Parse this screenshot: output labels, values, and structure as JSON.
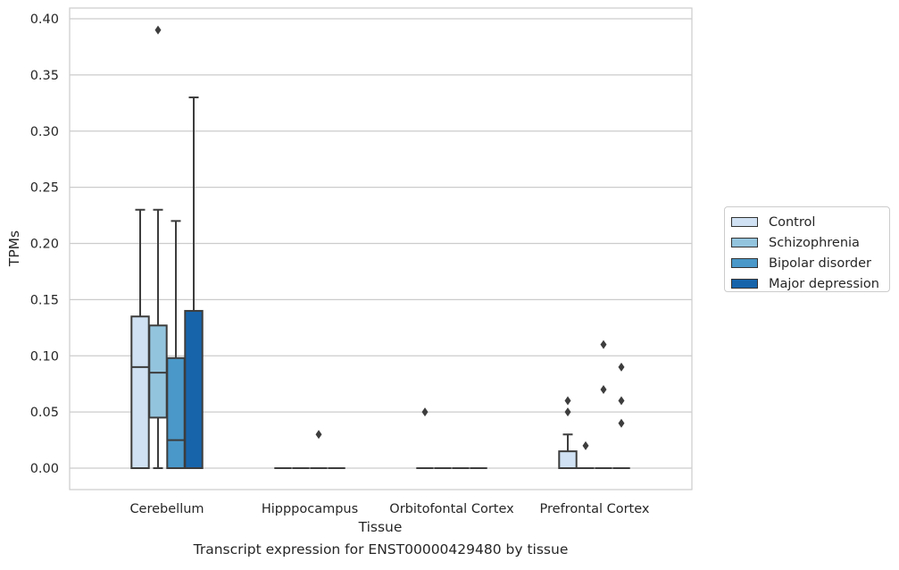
{
  "caption": "Transcript expression for ENST00000429480 by tissue",
  "colors": {
    "Control": "#cfe1f2",
    "Schizophrenia": "#93c4de",
    "Bipolar disorder": "#4a98c9",
    "Major depression": "#1764ab",
    "grid": "#cccccc",
    "line": "#3d3d3d"
  },
  "chart_data": {
    "type": "box",
    "title": "",
    "xlabel": "Tissue",
    "ylabel": "TPMs",
    "ylim": [
      -0.019,
      0.41
    ],
    "yticks": [
      0.0,
      0.05,
      0.1,
      0.15,
      0.2,
      0.25,
      0.3,
      0.35,
      0.4
    ],
    "ytick_labels": [
      "0.00",
      "0.05",
      "0.10",
      "0.15",
      "0.20",
      "0.25",
      "0.30",
      "0.35",
      "0.40"
    ],
    "grid": true,
    "legend_position": "right",
    "categories": [
      "Cerebellum",
      "Hipppocampus",
      "Orbitofontal Cortex",
      "Prefrontal Cortex"
    ],
    "series": [
      {
        "name": "Control",
        "boxes": [
          {
            "min": 0.0,
            "q1": 0.0,
            "median": 0.09,
            "q3": 0.135,
            "max": 0.23,
            "outliers": []
          },
          {
            "min": 0.0,
            "q1": 0.0,
            "median": 0.0,
            "q3": 0.0,
            "max": 0.0,
            "outliers": []
          },
          {
            "min": 0.0,
            "q1": 0.0,
            "median": 0.0,
            "q3": 0.0,
            "max": 0.0,
            "outliers": [
              0.05
            ]
          },
          {
            "min": 0.0,
            "q1": 0.0,
            "median": 0.0,
            "q3": 0.015,
            "max": 0.03,
            "outliers": [
              0.05,
              0.06
            ]
          }
        ]
      },
      {
        "name": "Schizophrenia",
        "boxes": [
          {
            "min": 0.0,
            "q1": 0.045,
            "median": 0.085,
            "q3": 0.127,
            "max": 0.23,
            "outliers": [
              0.39
            ]
          },
          {
            "min": 0.0,
            "q1": 0.0,
            "median": 0.0,
            "q3": 0.0,
            "max": 0.0,
            "outliers": []
          },
          {
            "min": 0.0,
            "q1": 0.0,
            "median": 0.0,
            "q3": 0.0,
            "max": 0.0,
            "outliers": []
          },
          {
            "min": 0.0,
            "q1": 0.0,
            "median": 0.0,
            "q3": 0.0,
            "max": 0.0,
            "outliers": [
              0.02
            ]
          }
        ]
      },
      {
        "name": "Bipolar disorder",
        "boxes": [
          {
            "min": 0.0,
            "q1": 0.0,
            "median": 0.025,
            "q3": 0.098,
            "max": 0.22,
            "outliers": []
          },
          {
            "min": 0.0,
            "q1": 0.0,
            "median": 0.0,
            "q3": 0.0,
            "max": 0.0,
            "outliers": [
              0.03
            ]
          },
          {
            "min": 0.0,
            "q1": 0.0,
            "median": 0.0,
            "q3": 0.0,
            "max": 0.0,
            "outliers": []
          },
          {
            "min": 0.0,
            "q1": 0.0,
            "median": 0.0,
            "q3": 0.0,
            "max": 0.0,
            "outliers": [
              0.07,
              0.11
            ]
          }
        ]
      },
      {
        "name": "Major depression",
        "boxes": [
          {
            "min": 0.0,
            "q1": 0.0,
            "median": 0.0,
            "q3": 0.14,
            "max": 0.33,
            "outliers": []
          },
          {
            "min": 0.0,
            "q1": 0.0,
            "median": 0.0,
            "q3": 0.0,
            "max": 0.0,
            "outliers": []
          },
          {
            "min": 0.0,
            "q1": 0.0,
            "median": 0.0,
            "q3": 0.0,
            "max": 0.0,
            "outliers": []
          },
          {
            "min": 0.0,
            "q1": 0.0,
            "median": 0.0,
            "q3": 0.0,
            "max": 0.0,
            "outliers": [
              0.04,
              0.06,
              0.09
            ]
          }
        ]
      }
    ]
  }
}
